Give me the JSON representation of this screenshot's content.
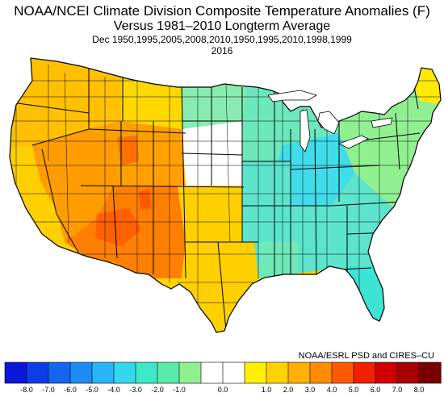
{
  "title": {
    "line1": "NOAA/NCEI Climate Division Composite Temperature Anomalies (F)",
    "line2": "Versus 1981–2010 Longterm Average",
    "line3": "Dec   1950,1995,2005,2008,2010,1950,1995,2010,1998,1999",
    "line4": "2016"
  },
  "credit": "NOAA/ESRL PSD and CIRES–CU",
  "legend": {
    "labels": [
      "-8.0",
      "-7.0",
      "-6.0",
      "-5.0",
      "-4.0",
      "-3.0",
      "-2.0",
      "-1.0",
      "0.0",
      "1.0",
      "2.0",
      "3.0",
      "4.0",
      "5.0",
      "6.0",
      "7.0",
      "8.0"
    ],
    "colors": [
      "#0a17d8",
      "#0c3ee8",
      "#1466f0",
      "#1e8cf6",
      "#28b4f6",
      "#34d8ee",
      "#3ce8c8",
      "#58ecaa",
      "#90f08e",
      "#ffffff",
      "#ffffff",
      "#fff000",
      "#ffd200",
      "#ffb000",
      "#ff8c00",
      "#ff5a00",
      "#f02000",
      "#d00000",
      "#a80000",
      "#7a0000"
    ]
  },
  "regions": [
    {
      "name": "pacific-northwest",
      "color": "#ffc000"
    },
    {
      "name": "california",
      "color": "#ffd000"
    },
    {
      "name": "great-basin",
      "color": "#ff9c00"
    },
    {
      "name": "southwest",
      "color": "#ff8000"
    },
    {
      "name": "central-rockies",
      "color": "#ffa000"
    },
    {
      "name": "northern-rockies",
      "color": "#ffd800"
    },
    {
      "name": "southern-plains",
      "color": "#ffd000"
    },
    {
      "name": "north-dakota",
      "color": "#88ecb0"
    },
    {
      "name": "central-plains",
      "color": "#ffffff"
    },
    {
      "name": "upper-midwest",
      "color": "#6ce8bc"
    },
    {
      "name": "midwest-core",
      "color": "#40dcea"
    },
    {
      "name": "northeast",
      "color": "#90f090"
    },
    {
      "name": "maine",
      "color": "#ffe900"
    },
    {
      "name": "southeast",
      "color": "#5ce4cc"
    },
    {
      "name": "gulf-coast",
      "color": "#70e8b8"
    },
    {
      "name": "florida",
      "color": "#3ce4d4"
    },
    {
      "name": "hotspot-utah",
      "color": "#ff7000"
    },
    {
      "name": "hotspot-arizona",
      "color": "#ff6000"
    },
    {
      "name": "hotspot-colorado",
      "color": "#ff5a00"
    }
  ]
}
